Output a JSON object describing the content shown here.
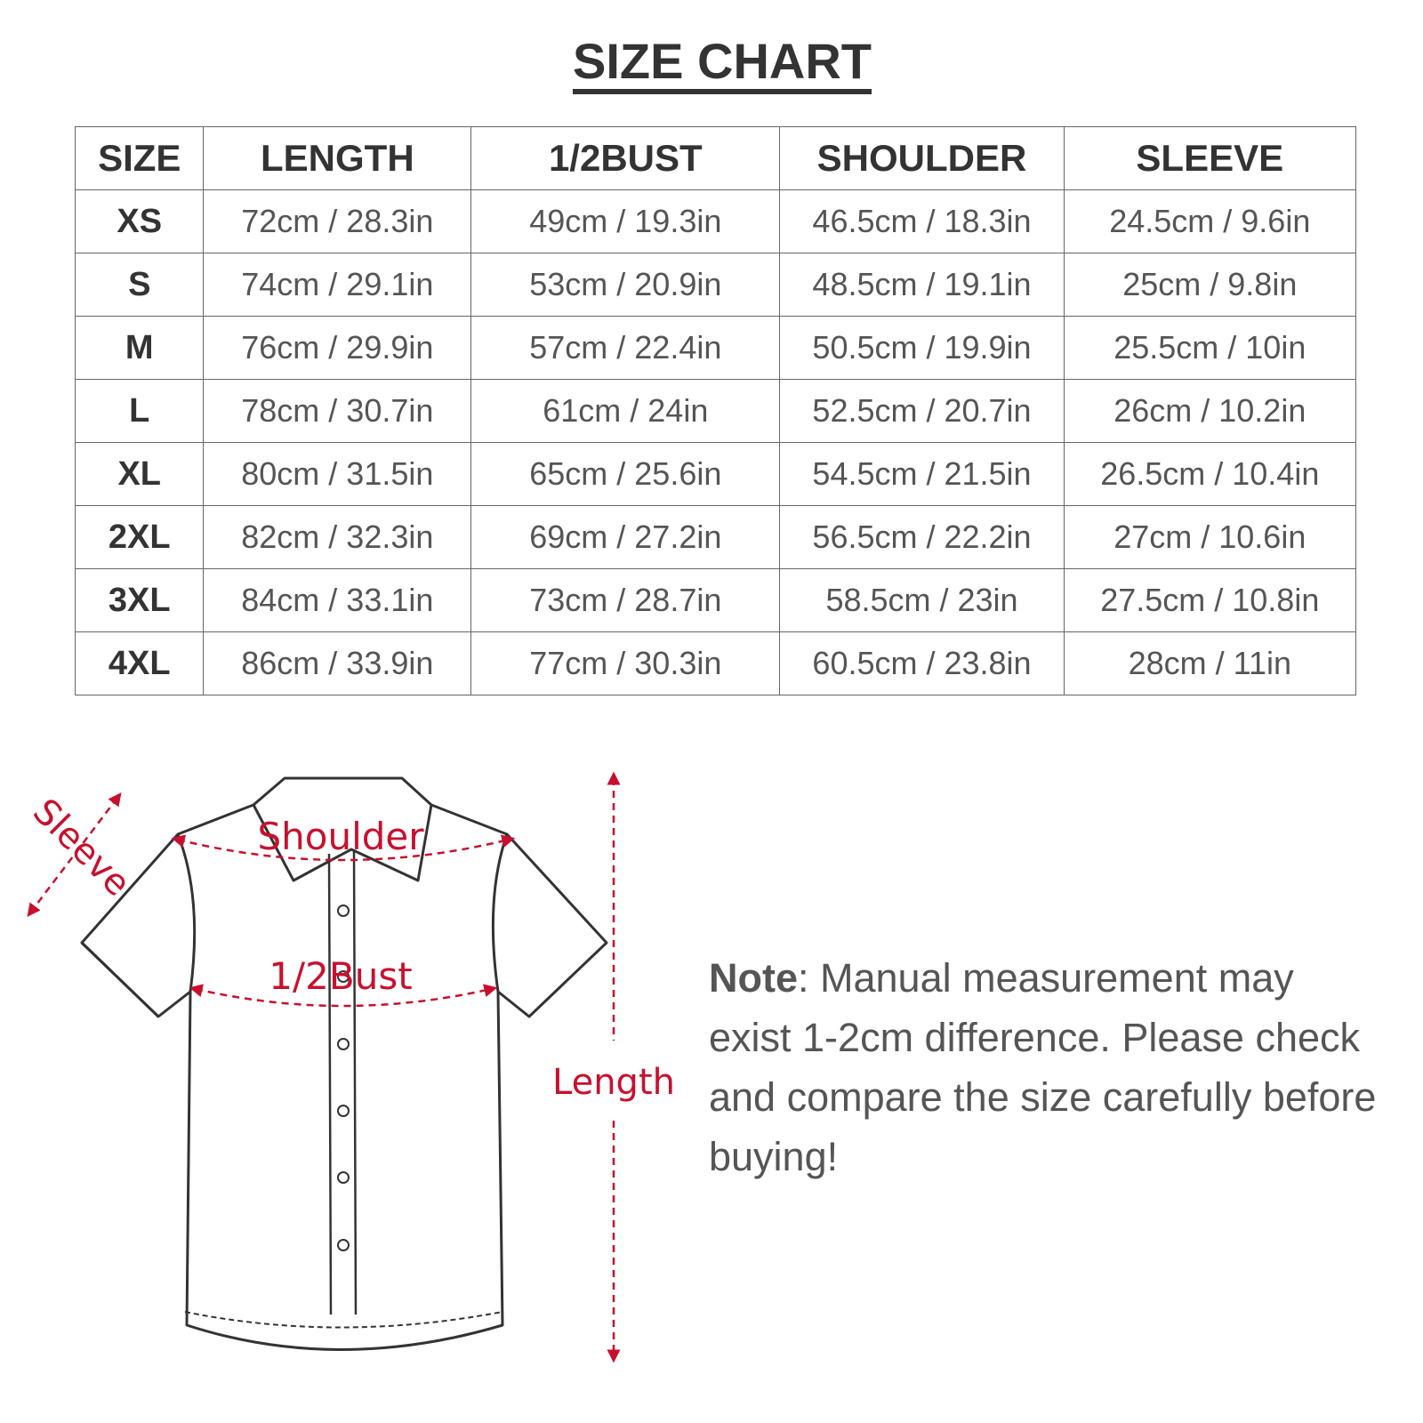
{
  "title": "SIZE CHART",
  "table": {
    "headers": [
      "SIZE",
      "LENGTH",
      "1/2BUST",
      "SHOULDER",
      "SLEEVE"
    ],
    "rows": [
      [
        "XS",
        "72cm / 28.3in",
        "49cm / 19.3in",
        "46.5cm / 18.3in",
        "24.5cm / 9.6in"
      ],
      [
        "S",
        "74cm / 29.1in",
        "53cm / 20.9in",
        "48.5cm / 19.1in",
        "25cm / 9.8in"
      ],
      [
        "M",
        "76cm / 29.9in",
        "57cm / 22.4in",
        "50.5cm / 19.9in",
        "25.5cm / 10in"
      ],
      [
        "L",
        "78cm / 30.7in",
        "61cm / 24in",
        "52.5cm / 20.7in",
        "26cm / 10.2in"
      ],
      [
        "XL",
        "80cm / 31.5in",
        "65cm / 25.6in",
        "54.5cm / 21.5in",
        "26.5cm / 10.4in"
      ],
      [
        "2XL",
        "82cm / 32.3in",
        "69cm / 27.2in",
        "56.5cm / 22.2in",
        "27cm / 10.6in"
      ],
      [
        "3XL",
        "84cm / 33.1in",
        "73cm / 28.7in",
        "58.5cm / 23in",
        "27.5cm / 10.8in"
      ],
      [
        "4XL",
        "86cm / 33.9in",
        "77cm / 30.3in",
        "60.5cm / 23.8in",
        "28cm / 11in"
      ]
    ]
  },
  "diagram": {
    "labels": {
      "sleeve": "Sleeve",
      "shoulder": "Shoulder",
      "bust": "1/2Bust",
      "length": "Length"
    },
    "accent_color": "#c8102e"
  },
  "note": {
    "label": "Note",
    "text": ": Manual measurement may exist 1-2cm difference. Please check and compare the size carefully before buying!"
  }
}
